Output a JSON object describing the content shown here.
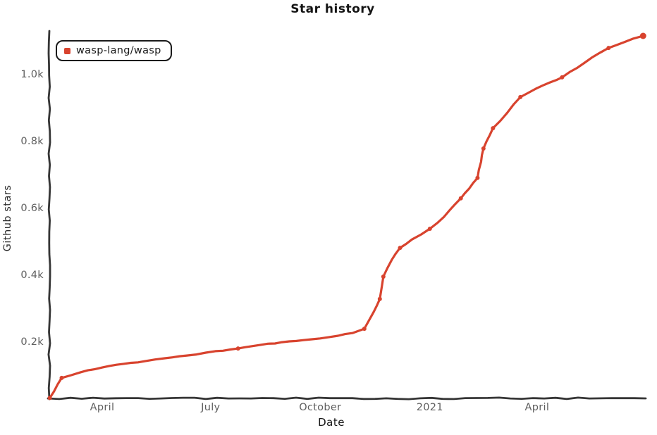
{
  "chart_data": {
    "type": "line",
    "title": "Star history",
    "xlabel": "Date",
    "ylabel": "Github stars",
    "legend_position": "top-left",
    "grid": false,
    "style": {
      "line_color": "#d8432e",
      "axis_color": "#363636",
      "tick_label_color": "#5f5f5f",
      "text_color": "#141414",
      "background": "#ffffff"
    },
    "ylim": [
      0,
      1130
    ],
    "y_ticks": [
      {
        "label": "0.2k",
        "value": 200
      },
      {
        "label": "0.4k",
        "value": 400
      },
      {
        "label": "0.6k",
        "value": 600
      },
      {
        "label": "0.8k",
        "value": 800
      },
      {
        "label": "1.0k",
        "value": 1000
      }
    ],
    "x_ticks": [
      {
        "label": "April",
        "date": "2020-04-01"
      },
      {
        "label": "July",
        "date": "2020-07-01"
      },
      {
        "label": "October",
        "date": "2020-10-01"
      },
      {
        "label": "2021",
        "date": "2021-01-01"
      },
      {
        "label": "April",
        "date": "2021-04-01"
      }
    ],
    "series": [
      {
        "name": "wasp-lang/wasp",
        "color": "#d8432e",
        "marker_indices": [
          0,
          1,
          9,
          16,
          18,
          19,
          21,
          23,
          25,
          27,
          29,
          30,
          32,
          35,
          38,
          40
        ],
        "points": [
          {
            "date": "2020-02-17",
            "stars": 35
          },
          {
            "date": "2020-02-27",
            "stars": 95
          },
          {
            "date": "2020-03-14",
            "stars": 112
          },
          {
            "date": "2020-04-01",
            "stars": 126
          },
          {
            "date": "2020-04-19",
            "stars": 137
          },
          {
            "date": "2020-05-07",
            "stars": 145
          },
          {
            "date": "2020-05-24",
            "stars": 154
          },
          {
            "date": "2020-06-11",
            "stars": 162
          },
          {
            "date": "2020-07-05",
            "stars": 175
          },
          {
            "date": "2020-07-24",
            "stars": 183
          },
          {
            "date": "2020-08-12",
            "stars": 194
          },
          {
            "date": "2020-08-30",
            "stars": 202
          },
          {
            "date": "2020-09-17",
            "stars": 208
          },
          {
            "date": "2020-10-01",
            "stars": 213
          },
          {
            "date": "2020-10-16",
            "stars": 221
          },
          {
            "date": "2020-10-28",
            "stars": 229
          },
          {
            "date": "2020-11-07",
            "stars": 242
          },
          {
            "date": "2020-11-15",
            "stars": 293
          },
          {
            "date": "2020-11-20",
            "stars": 331
          },
          {
            "date": "2020-11-23",
            "stars": 398
          },
          {
            "date": "2020-11-30",
            "stars": 448
          },
          {
            "date": "2020-12-07",
            "stars": 484
          },
          {
            "date": "2020-12-17",
            "stars": 509
          },
          {
            "date": "2021-01-01",
            "stars": 541
          },
          {
            "date": "2021-01-13",
            "stars": 577
          },
          {
            "date": "2021-01-27",
            "stars": 632
          },
          {
            "date": "2021-02-03",
            "stars": 661
          },
          {
            "date": "2021-02-10",
            "stars": 693
          },
          {
            "date": "2021-02-13",
            "stars": 741
          },
          {
            "date": "2021-02-15",
            "stars": 781
          },
          {
            "date": "2021-02-23",
            "stars": 842
          },
          {
            "date": "2021-03-07",
            "stars": 888
          },
          {
            "date": "2021-03-18",
            "stars": 935
          },
          {
            "date": "2021-03-31",
            "stars": 960
          },
          {
            "date": "2021-04-12",
            "stars": 979
          },
          {
            "date": "2021-04-22",
            "stars": 994
          },
          {
            "date": "2021-05-05",
            "stars": 1023
          },
          {
            "date": "2021-05-17",
            "stars": 1053
          },
          {
            "date": "2021-05-31",
            "stars": 1082
          },
          {
            "date": "2021-06-13",
            "stars": 1099
          },
          {
            "date": "2021-06-29",
            "stars": 1118
          }
        ]
      }
    ]
  }
}
